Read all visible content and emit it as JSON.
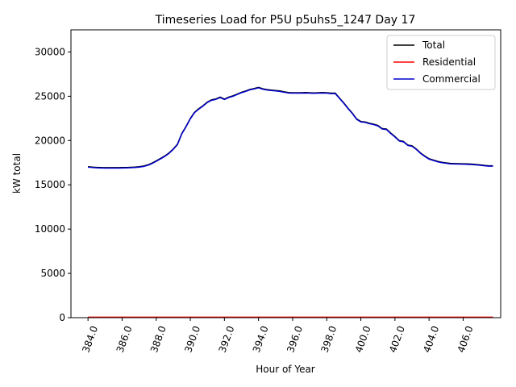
{
  "chart_data": {
    "type": "line",
    "title": "Timeseries Load for P5U p5uhs5_1247  Day 17",
    "xlabel": "Hour of Year",
    "ylabel": "kW total",
    "xlim": [
      383,
      408.2
    ],
    "ylim": [
      0,
      32500
    ],
    "xticks": [
      384,
      386,
      388,
      390,
      392,
      394,
      396,
      398,
      400,
      402,
      404,
      406
    ],
    "xtick_labels": [
      "384.0",
      "386.0",
      "388.0",
      "390.0",
      "392.0",
      "394.0",
      "396.0",
      "398.0",
      "400.0",
      "402.0",
      "404.0",
      "406.0"
    ],
    "yticks": [
      0,
      5000,
      10000,
      15000,
      20000,
      25000,
      30000
    ],
    "ytick_labels": [
      "0",
      "5000",
      "10000",
      "15000",
      "20000",
      "25000",
      "30000"
    ],
    "legend_position": "top-right",
    "grid": false,
    "x": [
      384.0,
      384.25,
      384.5,
      384.75,
      385.0,
      385.25,
      385.5,
      385.75,
      386.0,
      386.25,
      386.5,
      386.75,
      387.0,
      387.25,
      387.5,
      387.75,
      388.0,
      388.25,
      388.5,
      388.75,
      389.0,
      389.25,
      389.5,
      389.75,
      390.0,
      390.25,
      390.5,
      390.75,
      391.0,
      391.25,
      391.5,
      391.75,
      392.0,
      392.25,
      392.5,
      392.75,
      393.0,
      393.25,
      393.5,
      393.75,
      394.0,
      394.25,
      394.5,
      394.75,
      395.0,
      395.25,
      395.5,
      395.75,
      396.0,
      396.25,
      396.5,
      396.75,
      397.0,
      397.25,
      397.5,
      397.75,
      398.0,
      398.25,
      398.5,
      398.75,
      399.0,
      399.25,
      399.5,
      399.75,
      400.0,
      400.25,
      400.5,
      400.75,
      401.0,
      401.25,
      401.5,
      401.75,
      402.0,
      402.25,
      402.5,
      402.75,
      403.0,
      403.25,
      403.5,
      403.75,
      404.0,
      404.25,
      404.5,
      404.75,
      405.0,
      405.25,
      405.5,
      405.75,
      406.0,
      406.25,
      406.5,
      406.75,
      407.0,
      407.25,
      407.5,
      407.75
    ],
    "series": [
      {
        "name": "Total",
        "color": "#000000",
        "values": [
          17050,
          17000,
          16970,
          16950,
          16940,
          16940,
          16940,
          16940,
          16950,
          16960,
          16980,
          17000,
          17050,
          17120,
          17250,
          17450,
          17700,
          17980,
          18250,
          18600,
          19050,
          19600,
          20800,
          21600,
          22500,
          23200,
          23600,
          23950,
          24350,
          24600,
          24700,
          24900,
          24680,
          24900,
          25050,
          25250,
          25450,
          25600,
          25780,
          25880,
          26000,
          25850,
          25750,
          25700,
          25650,
          25600,
          25500,
          25420,
          25400,
          25400,
          25400,
          25420,
          25400,
          25380,
          25400,
          25420,
          25400,
          25350,
          25350,
          24800,
          24250,
          23650,
          23100,
          22450,
          22150,
          22100,
          21950,
          21850,
          21700,
          21350,
          21300,
          20850,
          20450,
          20000,
          19900,
          19500,
          19400,
          19050,
          18600,
          18250,
          17950,
          17800,
          17650,
          17550,
          17480,
          17420,
          17400,
          17390,
          17380,
          17360,
          17340,
          17300,
          17250,
          17200,
          17150,
          17150
        ],
        "linewidth": 1.5
      },
      {
        "name": "Residential",
        "color": "#ff0000",
        "values": [
          60,
          60,
          60,
          60,
          60,
          60,
          60,
          60,
          60,
          60,
          60,
          60,
          60,
          60,
          60,
          60,
          60,
          60,
          60,
          60,
          60,
          60,
          60,
          60,
          60,
          60,
          60,
          60,
          60,
          60,
          60,
          60,
          60,
          60,
          60,
          60,
          60,
          60,
          60,
          60,
          60,
          60,
          60,
          60,
          60,
          60,
          60,
          60,
          60,
          60,
          60,
          60,
          60,
          60,
          60,
          60,
          60,
          60,
          60,
          60,
          60,
          60,
          60,
          60,
          60,
          60,
          60,
          60,
          60,
          60,
          60,
          60,
          60,
          60,
          60,
          60,
          60,
          60,
          60,
          60,
          60,
          60,
          60,
          60,
          60,
          60,
          60,
          60,
          60,
          60,
          60,
          60,
          60,
          60,
          60,
          60
        ],
        "linewidth": 1.5
      },
      {
        "name": "Commercial",
        "color": "#0000cc",
        "values": [
          17000,
          16950,
          16920,
          16900,
          16890,
          16890,
          16890,
          16890,
          16900,
          16910,
          16930,
          16950,
          17000,
          17070,
          17200,
          17400,
          17650,
          17930,
          18200,
          18550,
          19000,
          19550,
          20750,
          21550,
          22450,
          23150,
          23550,
          23900,
          24300,
          24550,
          24650,
          24850,
          24630,
          24850,
          25000,
          25200,
          25400,
          25550,
          25730,
          25830,
          25950,
          25800,
          25700,
          25650,
          25600,
          25550,
          25450,
          25370,
          25350,
          25350,
          25350,
          25370,
          25350,
          25330,
          25350,
          25370,
          25350,
          25300,
          25300,
          24750,
          24200,
          23600,
          23050,
          22400,
          22100,
          22050,
          21900,
          21800,
          21650,
          21300,
          21250,
          20800,
          20400,
          19950,
          19850,
          19450,
          19350,
          19000,
          18550,
          18200,
          17900,
          17750,
          17600,
          17500,
          17430,
          17370,
          17350,
          17340,
          17330,
          17310,
          17290,
          17250,
          17200,
          17150,
          17100,
          17100
        ],
        "linewidth": 1.5
      }
    ]
  }
}
